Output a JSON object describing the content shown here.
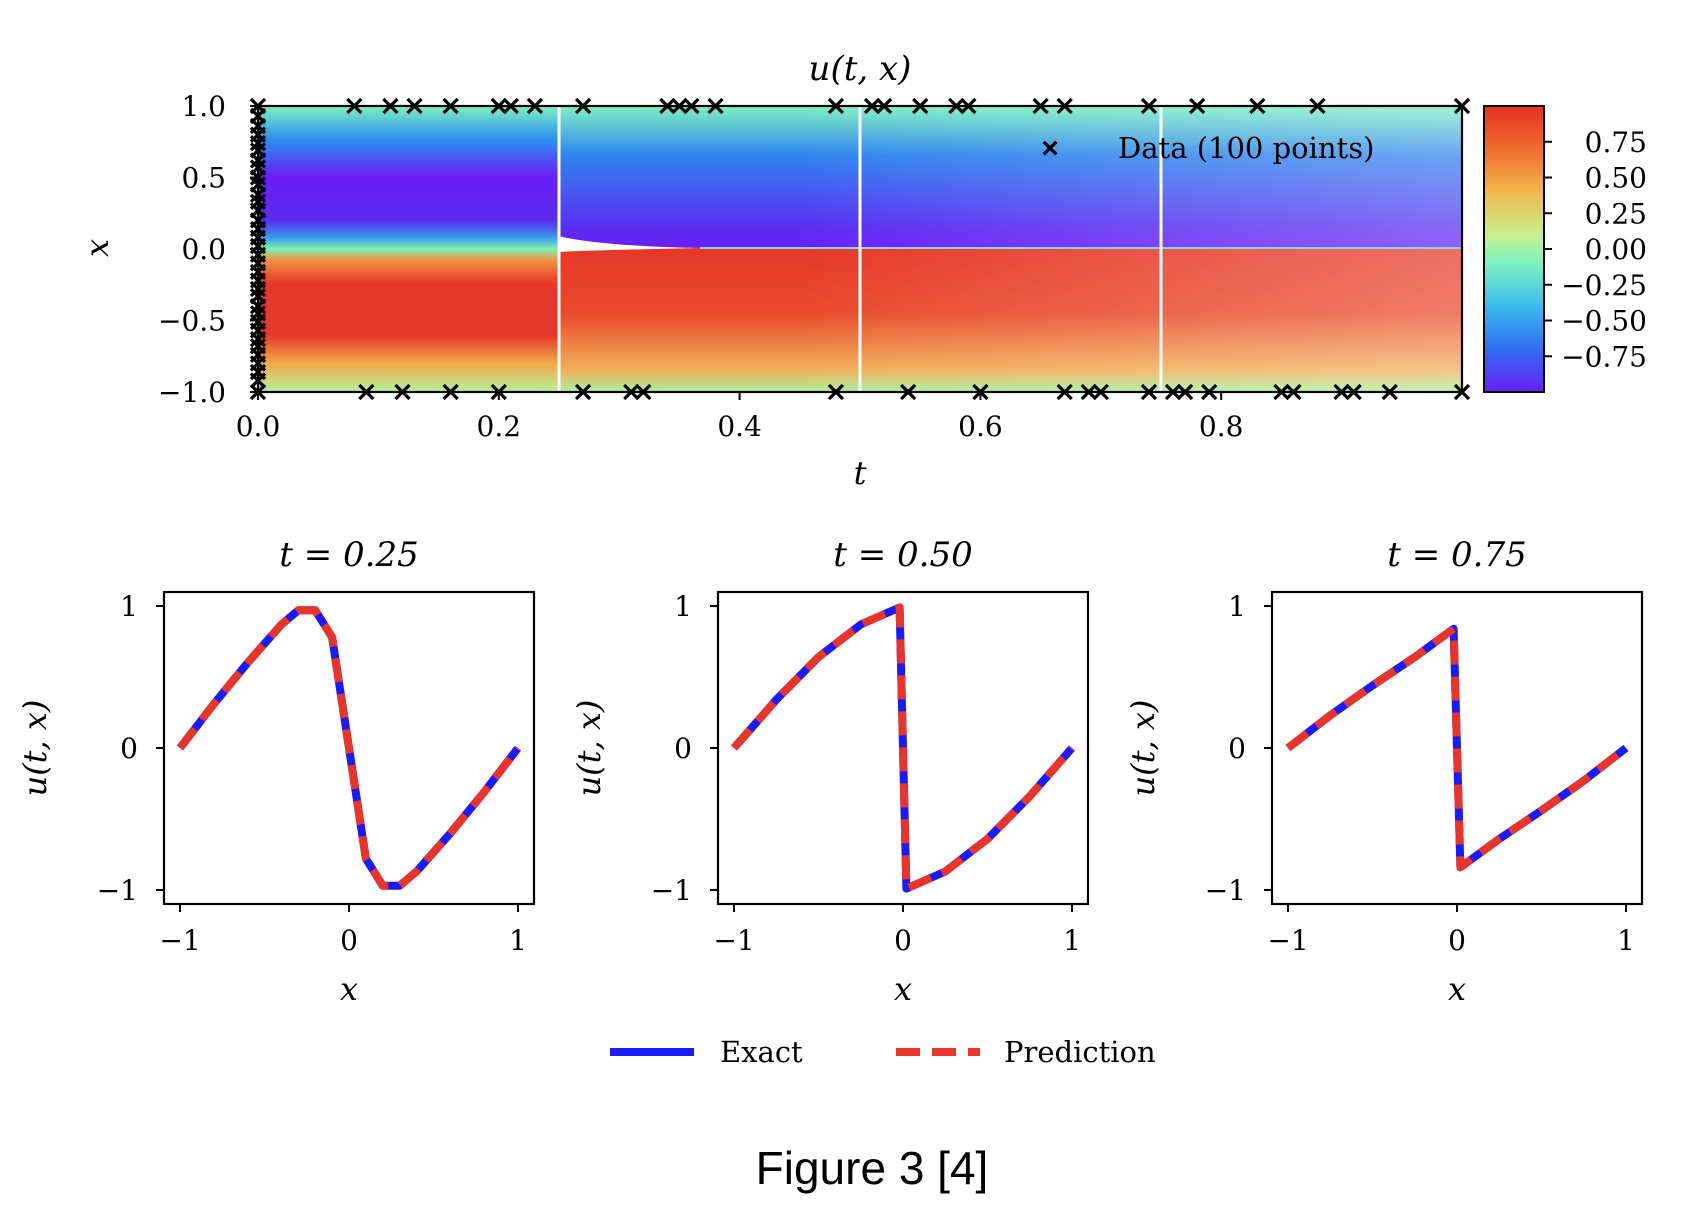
{
  "caption": "Figure 3 [4]",
  "chart_data": [
    {
      "type": "heatmap",
      "title": "u(t, x)",
      "xlabel": "t",
      "ylabel": "x",
      "xlim": [
        0,
        1
      ],
      "ylim": [
        -1,
        1
      ],
      "x_ticks": [
        "0.0",
        "0.2",
        "0.4",
        "0.6",
        "0.8"
      ],
      "y_ticks": [
        "1.0",
        "0.5",
        "0.0",
        "−0.5",
        "−1.0"
      ],
      "colorbar": {
        "ticks": [
          "0.75",
          "0.50",
          "0.25",
          "0.00",
          "−0.25",
          "−0.50",
          "−0.75"
        ],
        "range": [
          -1,
          1
        ],
        "colormap": "rainbow"
      },
      "vertical_lines_t": [
        0.25,
        0.5,
        0.75
      ],
      "legend": {
        "label": "Data (100 points)",
        "placement": "top-right"
      },
      "data_points_top_t": [
        0.08,
        0.11,
        0.13,
        0.16,
        0.2,
        0.21,
        0.23,
        0.27,
        0.34,
        0.35,
        0.36,
        0.38,
        0.48,
        0.51,
        0.52,
        0.55,
        0.58,
        0.59,
        0.65,
        0.67,
        0.74,
        0.78,
        0.83,
        0.88,
        1.0
      ],
      "data_points_bottom_t": [
        0.09,
        0.12,
        0.16,
        0.2,
        0.27,
        0.31,
        0.32,
        0.48,
        0.54,
        0.6,
        0.67,
        0.69,
        0.7,
        0.74,
        0.76,
        0.77,
        0.79,
        0.85,
        0.86,
        0.9,
        0.91,
        0.94,
        1.0
      ],
      "data_points_initial_x": [
        1.0,
        0.93,
        0.86,
        0.8,
        0.74,
        0.69,
        0.62,
        0.57,
        0.5,
        0.45,
        0.38,
        0.33,
        0.27,
        0.2,
        0.14,
        0.08,
        0.02,
        -0.04,
        -0.1,
        -0.16,
        -0.22,
        -0.28,
        -0.33,
        -0.4,
        -0.45,
        -0.51,
        -0.57,
        -0.63,
        -0.68,
        -0.74,
        -0.8,
        -0.86,
        -0.92,
        -1.0
      ]
    },
    {
      "type": "line",
      "title": "t = 0.25",
      "xlabel": "x",
      "ylabel": "u(t, x)",
      "xlim": [
        -1,
        1
      ],
      "ylim": [
        -1,
        1
      ],
      "x_ticks": [
        "−1",
        "0",
        "1"
      ],
      "y_ticks": [
        "1",
        "0",
        "−1"
      ],
      "series": [
        {
          "name": "Exact",
          "x": [
            -1,
            -0.8,
            -0.6,
            -0.4,
            -0.3,
            -0.2,
            -0.1,
            0,
            0.1,
            0.2,
            0.3,
            0.4,
            0.6,
            0.8,
            1
          ],
          "values": [
            0,
            0.31,
            0.6,
            0.87,
            0.97,
            0.97,
            0.78,
            0,
            -0.78,
            -0.97,
            -0.97,
            -0.87,
            -0.6,
            -0.31,
            0
          ]
        },
        {
          "name": "Prediction",
          "x": [
            -1,
            -0.8,
            -0.6,
            -0.4,
            -0.3,
            -0.2,
            -0.1,
            0,
            0.1,
            0.2,
            0.3,
            0.4,
            0.6,
            0.8,
            1
          ],
          "values": [
            0,
            0.31,
            0.6,
            0.87,
            0.97,
            0.97,
            0.78,
            0,
            -0.78,
            -0.97,
            -0.97,
            -0.87,
            -0.6,
            -0.31,
            0
          ]
        }
      ]
    },
    {
      "type": "line",
      "title": "t = 0.50",
      "xlabel": "x",
      "ylabel": "u(t, x)",
      "xlim": [
        -1,
        1
      ],
      "ylim": [
        -1,
        1
      ],
      "x_ticks": [
        "−1",
        "0",
        "1"
      ],
      "y_ticks": [
        "1",
        "0",
        "−1"
      ],
      "series": [
        {
          "name": "Exact",
          "x": [
            -1,
            -0.75,
            -0.5,
            -0.25,
            -0.02,
            0,
            0.02,
            0.25,
            0.5,
            0.75,
            1
          ],
          "values": [
            0,
            0.34,
            0.64,
            0.87,
            0.99,
            0,
            -0.99,
            -0.87,
            -0.64,
            -0.34,
            0
          ]
        },
        {
          "name": "Prediction",
          "x": [
            -1,
            -0.75,
            -0.5,
            -0.25,
            -0.02,
            0,
            0.02,
            0.25,
            0.5,
            0.75,
            1
          ],
          "values": [
            0,
            0.34,
            0.64,
            0.87,
            0.99,
            0,
            -0.99,
            -0.87,
            -0.64,
            -0.34,
            0
          ]
        }
      ]
    },
    {
      "type": "line",
      "title": "t = 0.75",
      "xlabel": "x",
      "ylabel": "u(t, x)",
      "xlim": [
        -1,
        1
      ],
      "ylim": [
        -1,
        1
      ],
      "x_ticks": [
        "−1",
        "0",
        "1"
      ],
      "y_ticks": [
        "1",
        "0",
        "−1"
      ],
      "series": [
        {
          "name": "Exact",
          "x": [
            -1,
            -0.75,
            -0.5,
            -0.25,
            -0.02,
            0,
            0.02,
            0.25,
            0.5,
            0.75,
            1
          ],
          "values": [
            0,
            0.23,
            0.44,
            0.64,
            0.84,
            0,
            -0.84,
            -0.64,
            -0.44,
            -0.23,
            0
          ]
        },
        {
          "name": "Prediction",
          "x": [
            -1,
            -0.75,
            -0.5,
            -0.25,
            -0.02,
            0,
            0.02,
            0.25,
            0.5,
            0.75,
            1
          ],
          "values": [
            0,
            0.23,
            0.44,
            0.64,
            0.84,
            0,
            -0.84,
            -0.64,
            -0.44,
            -0.23,
            0
          ]
        }
      ]
    }
  ],
  "legend": [
    "Exact",
    "Prediction"
  ],
  "colors": {
    "exact": "#1a1aff",
    "prediction": "#e8342a",
    "marker": "#000000"
  }
}
